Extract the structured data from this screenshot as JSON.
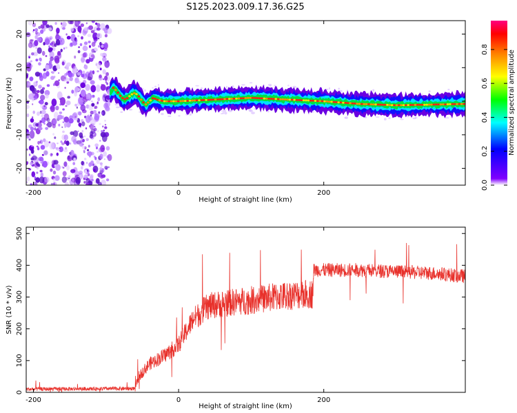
{
  "title": "S125.2023.009.17.36.G25",
  "chart_data": [
    {
      "type": "heatmap",
      "xlabel": "Height of straight line (km)",
      "ylabel": "Frequency (Hz)",
      "xlim": [
        -210,
        395
      ],
      "ylim": [
        -25,
        24
      ],
      "xticks": [
        -200,
        0,
        200
      ],
      "yticks": [
        -20,
        -10,
        0,
        10,
        20
      ],
      "colorbar": {
        "label": "Normalized spectral amplitude",
        "range": [
          0,
          0.97
        ],
        "ticks": [
          0.0,
          0.2,
          0.4,
          0.6,
          0.8
        ],
        "colors": [
          "#ffffff",
          "#7f00ff",
          "#0000ff",
          "#00ffff",
          "#00ff00",
          "#ffff00",
          "#ff8000",
          "#ff0000",
          "#ff0080"
        ]
      },
      "ridge": {
        "x": [
          -95,
          -90,
          -85,
          -80,
          -75,
          -70,
          -65,
          -60,
          -55,
          -50,
          -45,
          -40,
          -35,
          -30,
          -25,
          -20,
          0,
          50,
          100,
          150,
          200,
          250,
          300,
          350,
          395
        ],
        "y": [
          2.5,
          4,
          3,
          1.5,
          0.5,
          1,
          2,
          2.5,
          1.5,
          0,
          -1,
          0,
          1,
          0.5,
          0.2,
          0,
          0,
          0.5,
          1.0,
          0.5,
          0,
          -0.8,
          -1.2,
          -1.0,
          -0.8
        ]
      },
      "noise_region": {
        "x": [
          -210,
          -95
        ],
        "y": [
          -25,
          24
        ]
      }
    },
    {
      "type": "line",
      "xlabel": "Height of straight line (km)",
      "ylabel": "SNR (10 * v/v)",
      "xlim": [
        -210,
        395
      ],
      "ylim": [
        0,
        520
      ],
      "xticks": [
        -200,
        0,
        200
      ],
      "yticks": [
        0,
        100,
        200,
        300,
        400,
        500
      ],
      "series": [
        {
          "color": "#e8302a",
          "trend_x": [
            -210,
            -60,
            -55,
            -40,
            -20,
            0,
            20,
            40,
            60,
            100,
            150,
            185,
            186,
            250,
            300,
            350,
            395
          ],
          "trend_y": [
            10,
            12,
            50,
            90,
            115,
            150,
            230,
            270,
            280,
            290,
            305,
            310,
            385,
            385,
            380,
            375,
            365
          ]
        }
      ]
    }
  ]
}
